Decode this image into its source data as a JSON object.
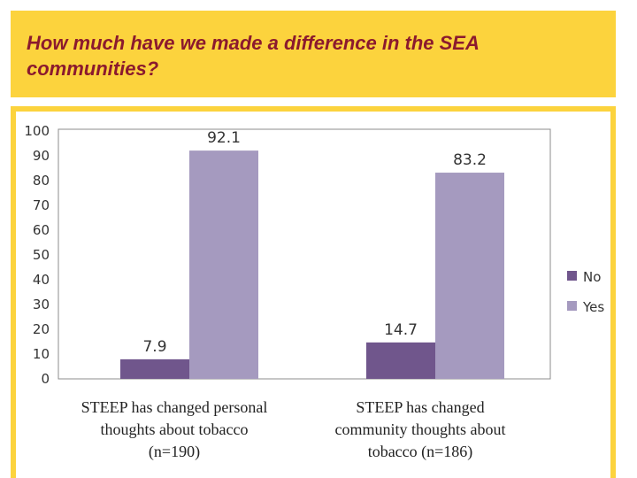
{
  "slide": {
    "title_line1": "How much have we made a difference in the SEA",
    "title_line2": "communities?"
  },
  "colors": {
    "title_bg": "#fcd33d",
    "title_text": "#8b1a2e",
    "no": "#70568c",
    "yes": "#a59abf"
  },
  "chart_data": {
    "type": "bar",
    "categories": [
      [
        "STEEP has changed personal",
        "thoughts about tobacco",
        "(n=190)"
      ],
      [
        "STEEP has changed",
        "community thoughts about",
        "tobacco (n=186)"
      ]
    ],
    "series": [
      {
        "name": "No",
        "values": [
          7.9,
          14.7
        ]
      },
      {
        "name": "Yes",
        "values": [
          92.1,
          83.2
        ]
      }
    ],
    "ylim": [
      0,
      100
    ],
    "yticks": [
      0,
      10,
      20,
      30,
      40,
      50,
      60,
      70,
      80,
      90,
      100
    ],
    "grid": false,
    "legend": "right"
  }
}
